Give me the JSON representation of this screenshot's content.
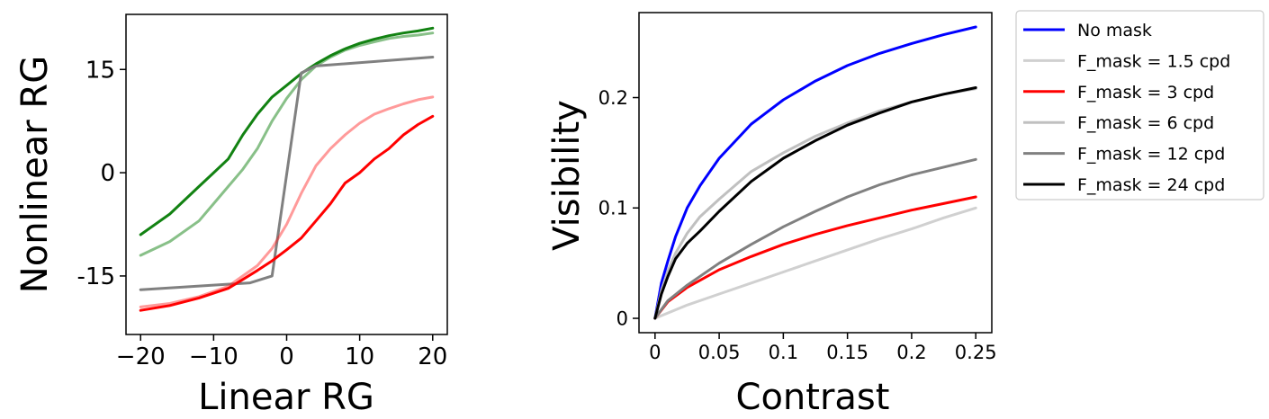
{
  "chart_data": [
    {
      "type": "line",
      "title": "",
      "xlabel": "Linear RG",
      "ylabel": "Nonlinear RG",
      "xlim": [
        -22,
        22
      ],
      "ylim": [
        -23.5,
        23
      ],
      "xticks": [
        -20,
        -10,
        0,
        10,
        20
      ],
      "xtick_labels": [
        "−20",
        "−10",
        "0",
        "10",
        "20"
      ],
      "yticks": [
        -15,
        0,
        15
      ],
      "ytick_labels": [
        "-15",
        "0",
        "15"
      ],
      "grid": false,
      "legend": null,
      "series": [
        {
          "name": "green-dark",
          "color": "#128212",
          "opacity": 1,
          "x": [
            -20,
            -16,
            -12,
            -10,
            -8,
            -6,
            -4,
            -2,
            0,
            2,
            4,
            6,
            8,
            10,
            12,
            14,
            16,
            18,
            20
          ],
          "y": [
            -9,
            -6,
            -2,
            0,
            2,
            5.5,
            8.5,
            11,
            12.7,
            14.4,
            15.8,
            17,
            18,
            18.8,
            19.4,
            19.9,
            20.3,
            20.6,
            21
          ]
        },
        {
          "name": "green-light",
          "color": "#128212",
          "opacity": 0.5,
          "x": [
            -20,
            -16,
            -12,
            -10,
            -8,
            -6,
            -4,
            -2,
            0,
            2,
            4,
            6,
            8,
            10,
            12,
            14,
            16,
            18,
            20
          ],
          "y": [
            -12,
            -10,
            -7,
            -4.5,
            -2,
            0.5,
            3.5,
            7.5,
            10.8,
            13.5,
            15.5,
            16.8,
            17.8,
            18.5,
            19,
            19.5,
            19.8,
            20,
            20.3
          ]
        },
        {
          "name": "gray",
          "color": "#808080",
          "opacity": 1,
          "x": [
            -20,
            -5,
            -2,
            2,
            4,
            20
          ],
          "y": [
            -17,
            -16,
            -15,
            14.5,
            15.5,
            16.8
          ]
        },
        {
          "name": "red-light",
          "color": "#ff2020",
          "opacity": 0.45,
          "x": [
            -20,
            -16,
            -12,
            -8,
            -6,
            -4,
            -2,
            0,
            2,
            4,
            6,
            8,
            10,
            12,
            14,
            16,
            18,
            20
          ],
          "y": [
            -19.5,
            -19,
            -18,
            -16.5,
            -15,
            -13.5,
            -11,
            -7.5,
            -3,
            1,
            3.5,
            5.5,
            7.2,
            8.5,
            9.3,
            10,
            10.6,
            11
          ]
        },
        {
          "name": "red-dark",
          "color": "#ff0000",
          "opacity": 1,
          "x": [
            -20,
            -16,
            -12,
            -8,
            -6,
            -4,
            -2,
            0,
            2,
            4,
            6,
            8,
            10,
            12,
            14,
            16,
            18,
            20
          ],
          "y": [
            -20,
            -19.3,
            -18.2,
            -16.8,
            -15.5,
            -14.2,
            -12.8,
            -11.2,
            -9.5,
            -7,
            -4.5,
            -1.5,
            0,
            2,
            3.5,
            5.5,
            7,
            8.2
          ]
        }
      ]
    },
    {
      "type": "line",
      "title": "",
      "xlabel": "Contrast",
      "ylabel": "Visibility",
      "xlim": [
        -0.0125,
        0.2625
      ],
      "ylim": [
        -0.013,
        0.277
      ],
      "xticks": [
        0,
        0.05,
        0.1,
        0.15,
        0.2,
        0.25
      ],
      "xtick_labels": [
        "0",
        "0.05",
        "0.1",
        "0.15",
        "0.2",
        "0.25"
      ],
      "yticks": [
        0,
        0.1,
        0.2
      ],
      "ytick_labels": [
        "0",
        "0.1",
        "0.2"
      ],
      "grid": false,
      "legend": "outside right, top",
      "series": [
        {
          "name": "No mask",
          "color": "#0000ff",
          "x": [
            0,
            0.005,
            0.01,
            0.016,
            0.025,
            0.035,
            0.05,
            0.075,
            0.1,
            0.125,
            0.15,
            0.175,
            0.2,
            0.225,
            0.25
          ],
          "y": [
            0,
            0.032,
            0.052,
            0.074,
            0.1,
            0.12,
            0.145,
            0.176,
            0.198,
            0.215,
            0.229,
            0.24,
            0.249,
            0.257,
            0.264
          ]
        },
        {
          "name": "F_mask = 1.5 cpd",
          "color": "#d0d0d0",
          "x": [
            0,
            0.025,
            0.05,
            0.075,
            0.1,
            0.125,
            0.15,
            0.175,
            0.2,
            0.225,
            0.25
          ],
          "y": [
            0,
            0.012,
            0.022,
            0.032,
            0.042,
            0.052,
            0.062,
            0.072,
            0.081,
            0.091,
            0.1
          ]
        },
        {
          "name": "F_mask = 3 cpd",
          "color": "#ff0000",
          "x": [
            0,
            0.01,
            0.025,
            0.05,
            0.075,
            0.1,
            0.125,
            0.15,
            0.175,
            0.2,
            0.225,
            0.25
          ],
          "y": [
            0,
            0.015,
            0.028,
            0.044,
            0.056,
            0.067,
            0.076,
            0.084,
            0.091,
            0.098,
            0.104,
            0.11
          ]
        },
        {
          "name": "F_mask = 6 cpd",
          "color": "#c0c0c0",
          "x": [
            0,
            0.005,
            0.01,
            0.016,
            0.025,
            0.035,
            0.05,
            0.075,
            0.1,
            0.125,
            0.15,
            0.175,
            0.2,
            0.225,
            0.25
          ],
          "y": [
            0,
            0.025,
            0.043,
            0.059,
            0.077,
            0.092,
            0.108,
            0.133,
            0.15,
            0.165,
            0.177,
            0.188,
            0.196,
            0.203,
            0.208
          ]
        },
        {
          "name": "F_mask = 12 cpd",
          "color": "#808080",
          "x": [
            0,
            0.01,
            0.025,
            0.05,
            0.075,
            0.1,
            0.125,
            0.15,
            0.175,
            0.2,
            0.225,
            0.25
          ],
          "y": [
            0,
            0.016,
            0.03,
            0.05,
            0.067,
            0.083,
            0.097,
            0.11,
            0.121,
            0.13,
            0.137,
            0.144
          ]
        },
        {
          "name": "F_mask = 24 cpd",
          "color": "#000000",
          "x": [
            0,
            0.005,
            0.01,
            0.016,
            0.025,
            0.035,
            0.05,
            0.075,
            0.1,
            0.125,
            0.15,
            0.175,
            0.2,
            0.225,
            0.25
          ],
          "y": [
            0,
            0.022,
            0.038,
            0.054,
            0.068,
            0.079,
            0.097,
            0.124,
            0.145,
            0.161,
            0.175,
            0.186,
            0.196,
            0.203,
            0.209
          ]
        }
      ]
    }
  ]
}
